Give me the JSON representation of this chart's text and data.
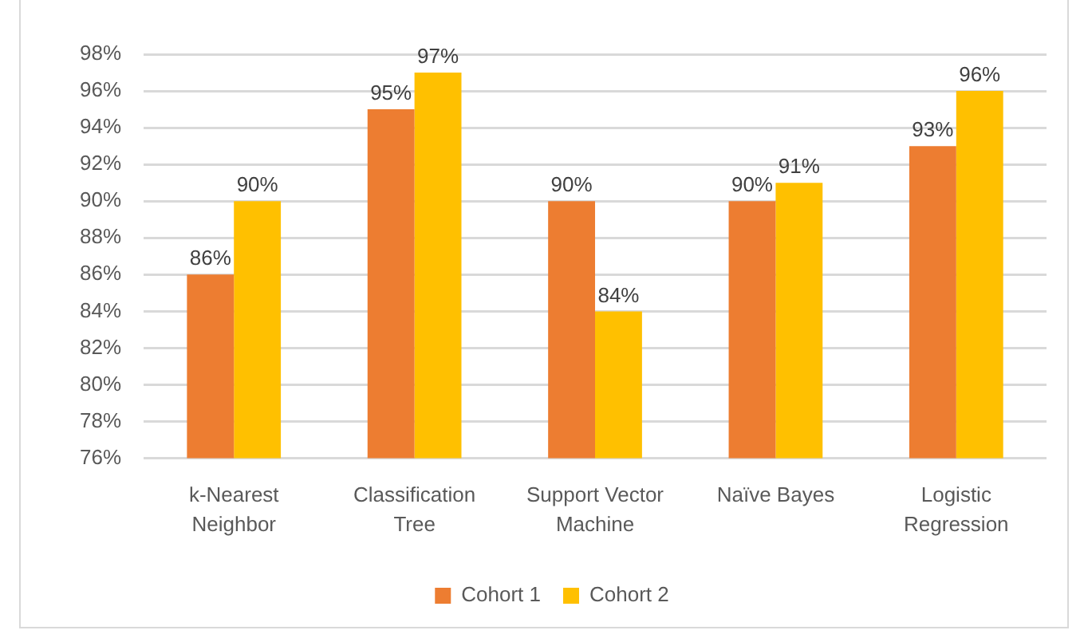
{
  "chart_data": {
    "type": "bar",
    "categories": [
      "k-Nearest Neighbor",
      "Classification Tree",
      "Support Vector Machine",
      "Naïve Bayes",
      "Logistic Regression"
    ],
    "series": [
      {
        "name": "Cohort 1",
        "color": "#ed7d31",
        "values": [
          86,
          95,
          90,
          90,
          93
        ],
        "value_labels": [
          "86%",
          "95%",
          "90%",
          "90%",
          "93%"
        ]
      },
      {
        "name": "Cohort 2",
        "color": "#ffc000",
        "values": [
          90,
          97,
          84,
          91,
          96
        ],
        "value_labels": [
          "90%",
          "97%",
          "84%",
          "91%",
          "96%"
        ]
      }
    ],
    "ylim": [
      76,
      98
    ],
    "yticks": [
      {
        "value": 76,
        "label": "76%"
      },
      {
        "value": 78,
        "label": "78%"
      },
      {
        "value": 80,
        "label": "80%"
      },
      {
        "value": 82,
        "label": "82%"
      },
      {
        "value": 84,
        "label": "84%"
      },
      {
        "value": 86,
        "label": "86%"
      },
      {
        "value": 88,
        "label": "88%"
      },
      {
        "value": 90,
        "label": "90%"
      },
      {
        "value": 92,
        "label": "92%"
      },
      {
        "value": 94,
        "label": "94%"
      },
      {
        "value": 96,
        "label": "96%"
      },
      {
        "value": 98,
        "label": "98%"
      }
    ],
    "grid": "y",
    "legend": "bottom"
  }
}
